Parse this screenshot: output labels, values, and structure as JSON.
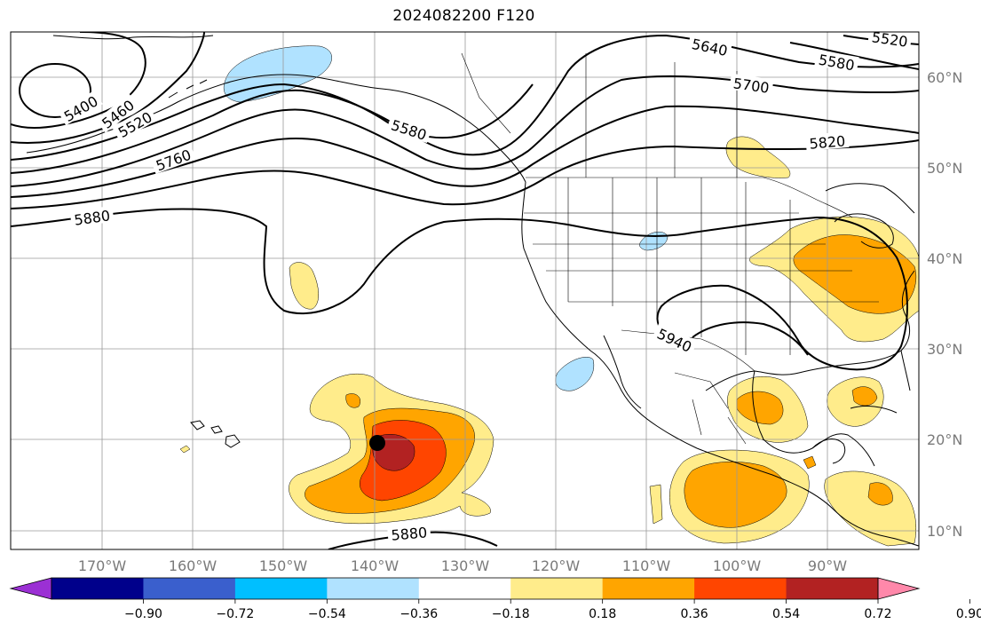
{
  "title": "2024082200 F120",
  "lon_ticks": [
    "170°W",
    "160°W",
    "150°W",
    "140°W",
    "130°W",
    "120°W",
    "110°W",
    "100°W",
    "90°W"
  ],
  "lat_ticks": [
    "60°N",
    "50°N",
    "40°N",
    "30°N",
    "20°N",
    "10°N"
  ],
  "colorbar": {
    "colors": [
      "#9b30d4",
      "#00008b",
      "#3a5fcd",
      "#00bfff",
      "#b0e2ff",
      "#ffffff",
      "#ffec8b",
      "#ffa500",
      "#ff4500",
      "#b22222",
      "#ff88aa"
    ],
    "tick_labels": [
      "−0.90",
      "−0.72",
      "−0.54",
      "−0.36",
      "−0.18",
      "0.18",
      "0.36",
      "0.54",
      "0.72",
      "0.90"
    ]
  },
  "contour_labels": [
    "5400",
    "5460",
    "5520",
    "5580",
    "5640",
    "5700",
    "5760",
    "5820",
    "5880",
    "5940",
    "5580",
    "5520",
    "5880"
  ],
  "marker": "storm-center-dot"
}
